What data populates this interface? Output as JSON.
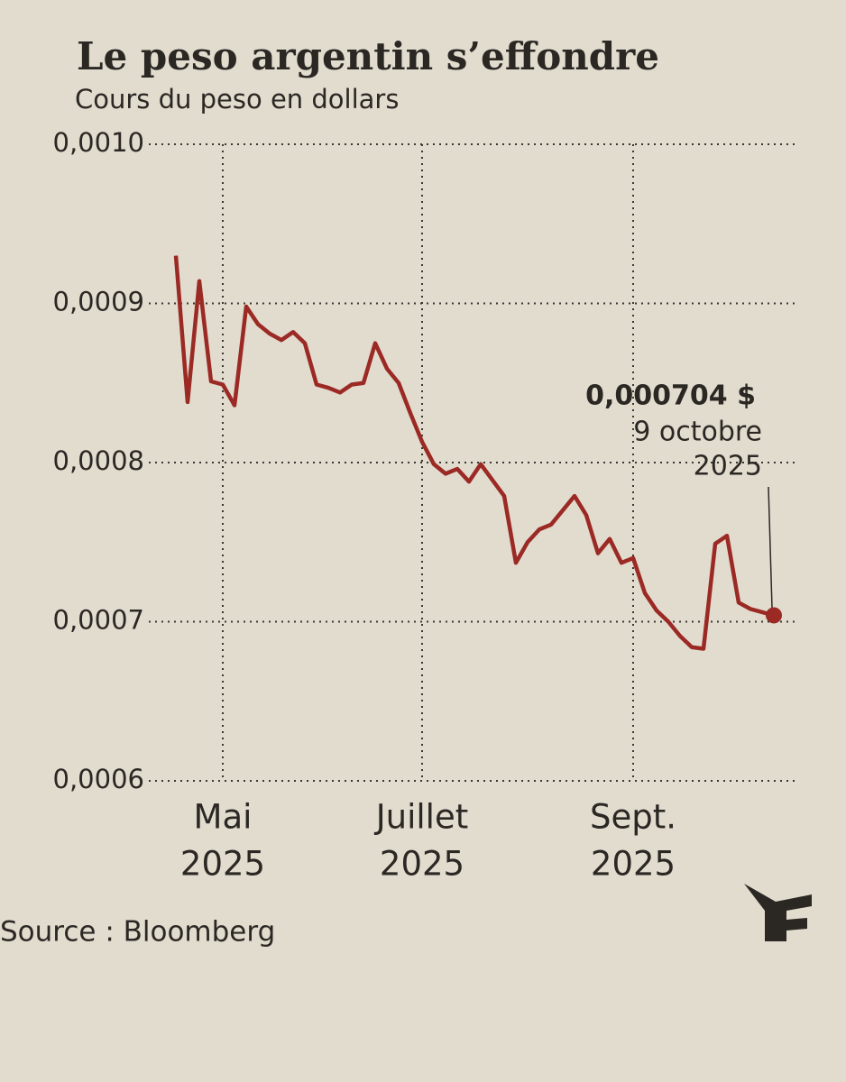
{
  "chart_data": {
    "type": "line",
    "title": "Le peso argentin s’effondre",
    "subtitle": "Cours du peso en dollars",
    "source": "Source : Bloomberg",
    "categories": [
      null,
      null,
      null,
      null,
      [
        "Mai",
        "2025"
      ],
      null,
      null,
      null,
      null,
      null,
      null,
      null,
      null,
      null,
      null,
      null,
      null,
      null,
      null,
      null,
      null,
      [
        "Juillet",
        "2025"
      ],
      null,
      null,
      null,
      null,
      null,
      null,
      null,
      null,
      null,
      null,
      null,
      null,
      null,
      null,
      null,
      null,
      null,
      [
        "Sept.",
        "2025"
      ],
      null,
      null,
      null,
      null,
      null,
      null,
      null,
      null,
      null,
      null,
      null,
      null
    ],
    "series": [
      {
        "name": "Cours du peso en dollars",
        "color": "#9b2a25",
        "values": [
          0.00093,
          0.000838,
          0.000914,
          0.000851,
          0.000849,
          0.000836,
          0.000898,
          0.000887,
          0.000881,
          0.000877,
          0.000882,
          0.000875,
          0.000849,
          0.000847,
          0.000844,
          0.000849,
          0.00085,
          0.000875,
          0.000859,
          0.00085,
          0.000831,
          0.000813,
          0.000799,
          0.000793,
          0.000796,
          0.000788,
          0.000799,
          0.000789,
          0.000779,
          0.000737,
          0.00075,
          0.000758,
          0.000761,
          0.00077,
          0.000779,
          0.000767,
          0.000743,
          0.000752,
          0.000737,
          0.00074,
          0.000718,
          0.000707,
          0.0007,
          0.000691,
          0.000684,
          0.000683,
          0.000749,
          0.000754,
          0.000712,
          0.000708,
          0.000706,
          0.000704
        ]
      }
    ],
    "annotation": {
      "value_label": "0,000704 $",
      "date": [
        "9 octobre",
        "2025"
      ]
    },
    "ylim": [
      0.0006,
      0.001
    ],
    "yticks": [
      {
        "value": 0.0006,
        "label": "0,0006"
      },
      {
        "value": 0.0007,
        "label": "0,0007"
      },
      {
        "value": 0.0008,
        "label": "0,0008"
      },
      {
        "value": 0.0009,
        "label": "0,0009"
      },
      {
        "value": 0.001,
        "label": "0,0010"
      }
    ],
    "grid": true
  }
}
